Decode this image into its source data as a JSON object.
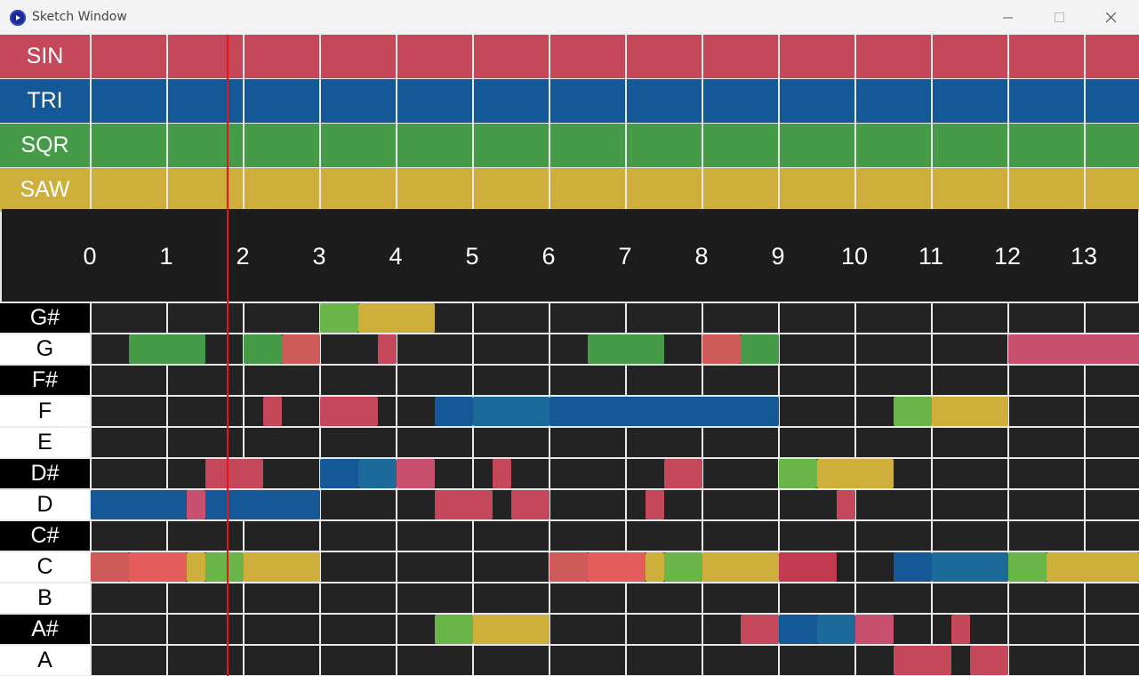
{
  "window": {
    "title": "Sketch Window",
    "buttons": {
      "minimize": "minimize-icon",
      "maximize": "maximize-icon",
      "close": "close-icon"
    }
  },
  "waveforms": [
    {
      "label": "SIN",
      "color": "#c5475a"
    },
    {
      "label": "TRI",
      "color": "#155897"
    },
    {
      "label": "SQR",
      "color": "#459b47"
    },
    {
      "label": "SAW",
      "color": "#ceaf3b"
    }
  ],
  "steps": [
    "0",
    "1",
    "2",
    "3",
    "4",
    "5",
    "6",
    "7",
    "8",
    "9",
    "10",
    "11",
    "12",
    "13"
  ],
  "playhead_step": 1.8,
  "notes": [
    {
      "label": "G#",
      "sharp": true
    },
    {
      "label": "G",
      "sharp": false
    },
    {
      "label": "F#",
      "sharp": true
    },
    {
      "label": "F",
      "sharp": false
    },
    {
      "label": "E",
      "sharp": false
    },
    {
      "label": "D#",
      "sharp": true
    },
    {
      "label": "D",
      "sharp": false
    },
    {
      "label": "C#",
      "sharp": true
    },
    {
      "label": "C",
      "sharp": false
    },
    {
      "label": "B",
      "sharp": false
    },
    {
      "label": "A#",
      "sharp": true
    },
    {
      "label": "A",
      "sharp": false
    }
  ],
  "note_blocks": [
    {
      "note": "G#",
      "start": 3.0,
      "end": 3.5,
      "color": "#6ab547"
    },
    {
      "note": "G#",
      "start": 3.5,
      "end": 4.5,
      "color": "#cfaf3b"
    },
    {
      "note": "G",
      "start": 0.5,
      "end": 1.5,
      "color": "#459b47"
    },
    {
      "note": "G",
      "start": 2.0,
      "end": 2.5,
      "color": "#459b47"
    },
    {
      "note": "G",
      "start": 2.5,
      "end": 3.0,
      "color": "#cf5a5a"
    },
    {
      "note": "G",
      "start": 3.75,
      "end": 4.0,
      "color": "#c5475a"
    },
    {
      "note": "G",
      "start": 6.5,
      "end": 7.5,
      "color": "#459b47"
    },
    {
      "note": "G",
      "start": 8.0,
      "end": 8.5,
      "color": "#cf5a5a"
    },
    {
      "note": "G",
      "start": 8.5,
      "end": 9.0,
      "color": "#459b47"
    },
    {
      "note": "G",
      "start": 12.0,
      "end": 13.75,
      "color": "#c84f6d"
    },
    {
      "note": "F",
      "start": 2.25,
      "end": 2.5,
      "color": "#c5475a"
    },
    {
      "note": "F",
      "start": 3.0,
      "end": 3.75,
      "color": "#c5475a"
    },
    {
      "note": "F",
      "start": 4.5,
      "end": 5.0,
      "color": "#155897"
    },
    {
      "note": "F",
      "start": 5.0,
      "end": 6.0,
      "color": "#1b6a9a"
    },
    {
      "note": "F",
      "start": 6.0,
      "end": 9.0,
      "color": "#155897"
    },
    {
      "note": "F",
      "start": 10.5,
      "end": 11.0,
      "color": "#6ab547"
    },
    {
      "note": "F",
      "start": 11.0,
      "end": 12.0,
      "color": "#cfaf3b"
    },
    {
      "note": "D#",
      "start": 1.5,
      "end": 2.25,
      "color": "#c5475a"
    },
    {
      "note": "D#",
      "start": 3.0,
      "end": 3.5,
      "color": "#155897"
    },
    {
      "note": "D#",
      "start": 3.5,
      "end": 4.0,
      "color": "#1b6a9a"
    },
    {
      "note": "D#",
      "start": 4.0,
      "end": 4.5,
      "color": "#c84f6d"
    },
    {
      "note": "D#",
      "start": 5.25,
      "end": 5.5,
      "color": "#c5475a"
    },
    {
      "note": "D#",
      "start": 7.5,
      "end": 8.0,
      "color": "#c5475a"
    },
    {
      "note": "D#",
      "start": 9.0,
      "end": 9.5,
      "color": "#6ab547"
    },
    {
      "note": "D#",
      "start": 9.5,
      "end": 10.5,
      "color": "#cfaf3b"
    },
    {
      "note": "D",
      "start": 0.0,
      "end": 1.25,
      "color": "#155897"
    },
    {
      "note": "D",
      "start": 1.25,
      "end": 1.5,
      "color": "#c84f6d"
    },
    {
      "note": "D",
      "start": 1.5,
      "end": 3.0,
      "color": "#155897"
    },
    {
      "note": "D",
      "start": 4.5,
      "end": 5.25,
      "color": "#c5475a"
    },
    {
      "note": "D",
      "start": 5.5,
      "end": 6.0,
      "color": "#c5475a"
    },
    {
      "note": "D",
      "start": 7.25,
      "end": 7.5,
      "color": "#c5475a"
    },
    {
      "note": "D",
      "start": 9.75,
      "end": 10.0,
      "color": "#c5475a"
    },
    {
      "note": "C",
      "start": 0.0,
      "end": 0.5,
      "color": "#cf5a5a"
    },
    {
      "note": "C",
      "start": 0.5,
      "end": 1.25,
      "color": "#e55c5c"
    },
    {
      "note": "C",
      "start": 1.25,
      "end": 1.5,
      "color": "#cfaf3b"
    },
    {
      "note": "C",
      "start": 1.5,
      "end": 2.0,
      "color": "#6ab547"
    },
    {
      "note": "C",
      "start": 2.0,
      "end": 3.0,
      "color": "#cfaf3b"
    },
    {
      "note": "C",
      "start": 6.0,
      "end": 6.5,
      "color": "#cf5a5a"
    },
    {
      "note": "C",
      "start": 6.5,
      "end": 7.25,
      "color": "#e55c5c"
    },
    {
      "note": "C",
      "start": 7.25,
      "end": 7.5,
      "color": "#cfaf3b"
    },
    {
      "note": "C",
      "start": 7.5,
      "end": 8.0,
      "color": "#6ab547"
    },
    {
      "note": "C",
      "start": 8.0,
      "end": 9.0,
      "color": "#cfaf3b"
    },
    {
      "note": "C",
      "start": 9.0,
      "end": 9.75,
      "color": "#c23a4f"
    },
    {
      "note": "C",
      "start": 10.5,
      "end": 11.0,
      "color": "#155897"
    },
    {
      "note": "C",
      "start": 11.0,
      "end": 12.0,
      "color": "#1b6a9a"
    },
    {
      "note": "C",
      "start": 12.0,
      "end": 12.5,
      "color": "#6ab547"
    },
    {
      "note": "C",
      "start": 12.5,
      "end": 13.75,
      "color": "#cfaf3b"
    },
    {
      "note": "A#",
      "start": 4.5,
      "end": 5.0,
      "color": "#6ab547"
    },
    {
      "note": "A#",
      "start": 5.0,
      "end": 6.0,
      "color": "#cfaf3b"
    },
    {
      "note": "A#",
      "start": 8.5,
      "end": 9.0,
      "color": "#c5475a"
    },
    {
      "note": "A#",
      "start": 9.0,
      "end": 9.5,
      "color": "#155897"
    },
    {
      "note": "A#",
      "start": 9.5,
      "end": 10.0,
      "color": "#1b6a9a"
    },
    {
      "note": "A#",
      "start": 10.0,
      "end": 10.5,
      "color": "#c84f6d"
    },
    {
      "note": "A#",
      "start": 11.25,
      "end": 11.5,
      "color": "#c5475a"
    },
    {
      "note": "A",
      "start": 10.5,
      "end": 11.25,
      "color": "#c5475a"
    },
    {
      "note": "A",
      "start": 11.5,
      "end": 12.0,
      "color": "#c5475a"
    }
  ]
}
